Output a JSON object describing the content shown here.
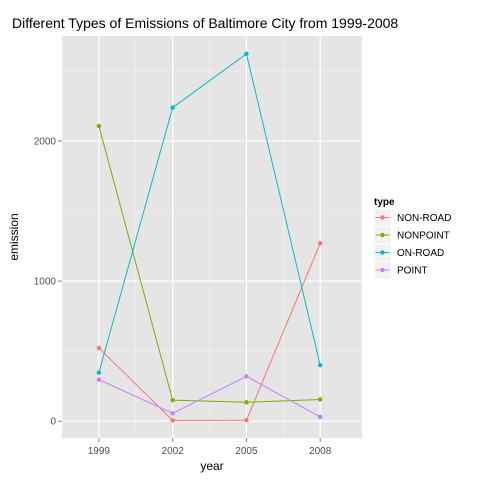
{
  "chart_data": {
    "type": "line",
    "title": "Different Types of Emissions of Baltimore City from 1999-2008",
    "xlabel": "year",
    "ylabel": "emission",
    "x": [
      1999,
      2002,
      2005,
      2008
    ],
    "x_tick_labels": [
      "1999",
      "2002",
      "2005",
      "2008"
    ],
    "y_ticks": [
      0,
      1000,
      2000
    ],
    "y_tick_labels": [
      "0",
      "1000",
      "2000"
    ],
    "xlim": [
      1997.5,
      2009.7
    ],
    "ylim": [
      -120,
      2750
    ],
    "grid": true,
    "legend": {
      "title": "type",
      "position": "right"
    },
    "series": [
      {
        "name": "NON-ROAD",
        "color": "#F8766D",
        "values": [
          522.9,
          5.0,
          7.0,
          1270.0
        ]
      },
      {
        "name": "NONPOINT",
        "color": "#7CAE00",
        "values": [
          2107.6,
          150.0,
          135.0,
          155.0
        ]
      },
      {
        "name": "ON-ROAD",
        "color": "#00BFC4",
        "values": [
          346.8,
          2239.0,
          2623.0,
          400.0
        ]
      },
      {
        "name": "POINT",
        "color": "#C77CFF",
        "values": [
          296.8,
          56.0,
          320.0,
          30.0
        ]
      }
    ]
  }
}
